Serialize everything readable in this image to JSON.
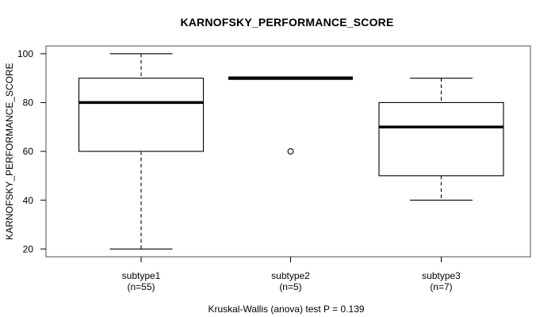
{
  "figure": {
    "title": "KARNOFSKY_PERFORMANCE_SCORE",
    "annotation": "Kruskal-Wallis (anova) test P = 0.139"
  },
  "chart_data": {
    "type": "boxplot",
    "title": "KARNOFSKY_PERFORMANCE_SCORE",
    "xlabel": "",
    "ylabel": "KARNOFSKY_PERFORMANCE_SCORE",
    "ylim": [
      16.8,
      103.2
    ],
    "y_ticks": [
      20,
      40,
      60,
      80,
      100
    ],
    "grid": false,
    "legend": "none",
    "categories": [
      "subtype1",
      "subtype2",
      "subtype3"
    ],
    "groups": [
      {
        "label": "subtype1",
        "sublabel": "(n=55)",
        "n": 55,
        "whisker_low": 20,
        "q1": 60,
        "median": 80,
        "q3": 90,
        "whisker_high": 100,
        "outliers": []
      },
      {
        "label": "subtype2",
        "sublabel": "(n=5)",
        "n": 5,
        "whisker_low": 90,
        "q1": 90,
        "median": 90,
        "q3": 90,
        "whisker_high": 90,
        "outliers": [
          60
        ]
      },
      {
        "label": "subtype3",
        "sublabel": "(n=7)",
        "n": 7,
        "whisker_low": 40,
        "q1": 50,
        "median": 70,
        "q3": 80,
        "whisker_high": 90,
        "outliers": []
      }
    ],
    "annotation": "Kruskal-Wallis (anova) test P = 0.139",
    "colors": {
      "line": "#000000",
      "frame": "#4d4d4d",
      "background": "#ffffff"
    }
  }
}
